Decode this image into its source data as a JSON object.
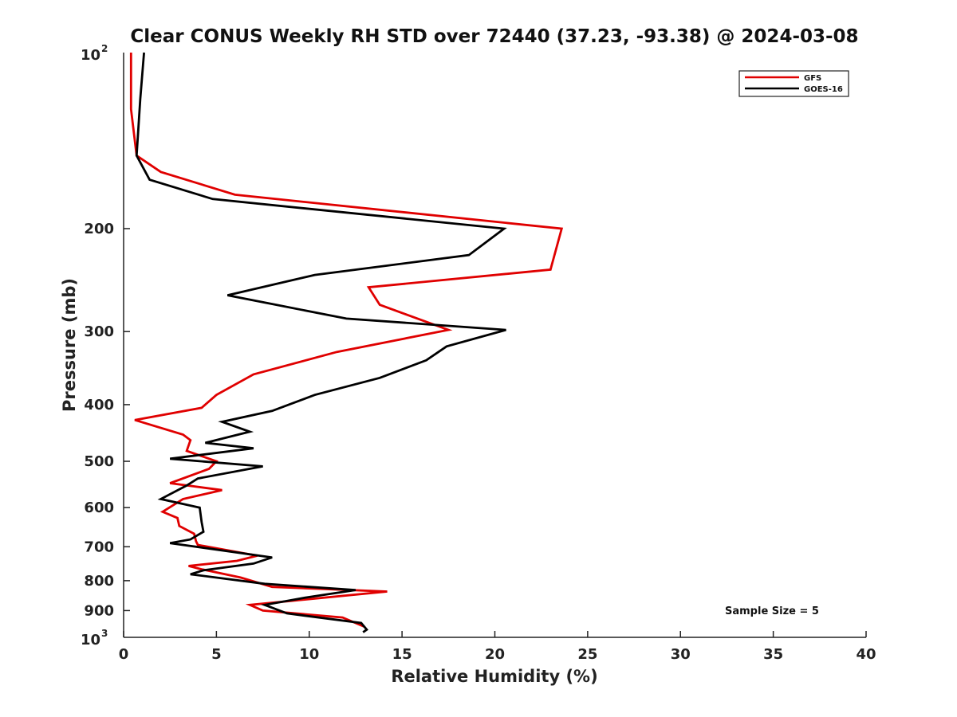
{
  "chart_data": {
    "type": "line",
    "title": "Clear CONUS Weekly RH STD over 72440 (37.23, -93.38) @ 2024-03-08",
    "xlabel": "Relative Humidity (%)",
    "ylabel": "Pressure (mb)",
    "xlim": [
      0,
      40
    ],
    "ylim": [
      100,
      1000
    ],
    "y_scale": "log",
    "y_reversed": true,
    "x_ticks": [
      0,
      5,
      10,
      15,
      20,
      25,
      30,
      35,
      40
    ],
    "x_tick_labels": [
      "0",
      "5",
      "10",
      "15",
      "20",
      "25",
      "30",
      "35",
      "40"
    ],
    "y_ticks": [
      200,
      300,
      400,
      500,
      600,
      700,
      800,
      900
    ],
    "y_tick_labels": [
      "200",
      "300",
      "400",
      "500",
      "600",
      "700",
      "800",
      "900"
    ],
    "y_edge_labels": [
      {
        "value": 100,
        "base": "10",
        "exp": "2"
      },
      {
        "value": 1000,
        "base": "10",
        "exp": "3"
      }
    ],
    "grid": false,
    "legend_position": "top-right",
    "annotation": "Sample Size = 5",
    "series": [
      {
        "name": "GFS",
        "color": "#e00000",
        "points": [
          [
            0.4,
            100
          ],
          [
            0.4,
            125
          ],
          [
            0.7,
            150
          ],
          [
            2.0,
            160
          ],
          [
            6.0,
            175
          ],
          [
            23.6,
            200
          ],
          [
            23.0,
            235
          ],
          [
            13.2,
            252
          ],
          [
            13.8,
            270
          ],
          [
            17.5,
            298
          ],
          [
            11.5,
            325
          ],
          [
            7.0,
            355
          ],
          [
            5.0,
            385
          ],
          [
            4.2,
            405
          ],
          [
            0.6,
            425
          ],
          [
            3.2,
            450
          ],
          [
            3.6,
            460
          ],
          [
            3.4,
            480
          ],
          [
            5.0,
            500
          ],
          [
            4.6,
            515
          ],
          [
            2.5,
            545
          ],
          [
            5.3,
            560
          ],
          [
            3.2,
            580
          ],
          [
            2.1,
            610
          ],
          [
            2.9,
            625
          ],
          [
            3.0,
            645
          ],
          [
            3.8,
            665
          ],
          [
            3.9,
            685
          ],
          [
            4.0,
            695
          ],
          [
            7.2,
            725
          ],
          [
            6.1,
            740
          ],
          [
            3.5,
            755
          ],
          [
            4.2,
            765
          ],
          [
            6.3,
            790
          ],
          [
            8.0,
            820
          ],
          [
            14.2,
            835
          ],
          [
            6.8,
            880
          ],
          [
            7.5,
            900
          ],
          [
            11.8,
            925
          ],
          [
            13.0,
            960
          ]
        ]
      },
      {
        "name": "GOES-16",
        "color": "#000000",
        "points": [
          [
            1.1,
            100
          ],
          [
            0.9,
            120
          ],
          [
            0.7,
            150
          ],
          [
            1.4,
            165
          ],
          [
            4.8,
            178
          ],
          [
            20.5,
            200
          ],
          [
            18.6,
            222
          ],
          [
            10.3,
            240
          ],
          [
            5.6,
            260
          ],
          [
            12.0,
            285
          ],
          [
            20.6,
            298
          ],
          [
            17.4,
            318
          ],
          [
            16.3,
            336
          ],
          [
            13.8,
            360
          ],
          [
            10.3,
            385
          ],
          [
            8.0,
            410
          ],
          [
            5.3,
            428
          ],
          [
            6.8,
            445
          ],
          [
            4.4,
            465
          ],
          [
            7.0,
            475
          ],
          [
            2.5,
            495
          ],
          [
            7.5,
            510
          ],
          [
            4.0,
            535
          ],
          [
            3.4,
            550
          ],
          [
            2.0,
            580
          ],
          [
            4.1,
            600
          ],
          [
            4.2,
            635
          ],
          [
            4.3,
            660
          ],
          [
            3.6,
            680
          ],
          [
            2.5,
            690
          ],
          [
            8.0,
            730
          ],
          [
            7.0,
            748
          ],
          [
            4.3,
            768
          ],
          [
            3.6,
            780
          ],
          [
            7.6,
            810
          ],
          [
            12.5,
            830
          ],
          [
            9.8,
            855
          ],
          [
            7.6,
            880
          ],
          [
            8.8,
            910
          ],
          [
            12.8,
            945
          ],
          [
            13.1,
            970
          ],
          [
            12.9,
            980
          ]
        ]
      }
    ]
  }
}
